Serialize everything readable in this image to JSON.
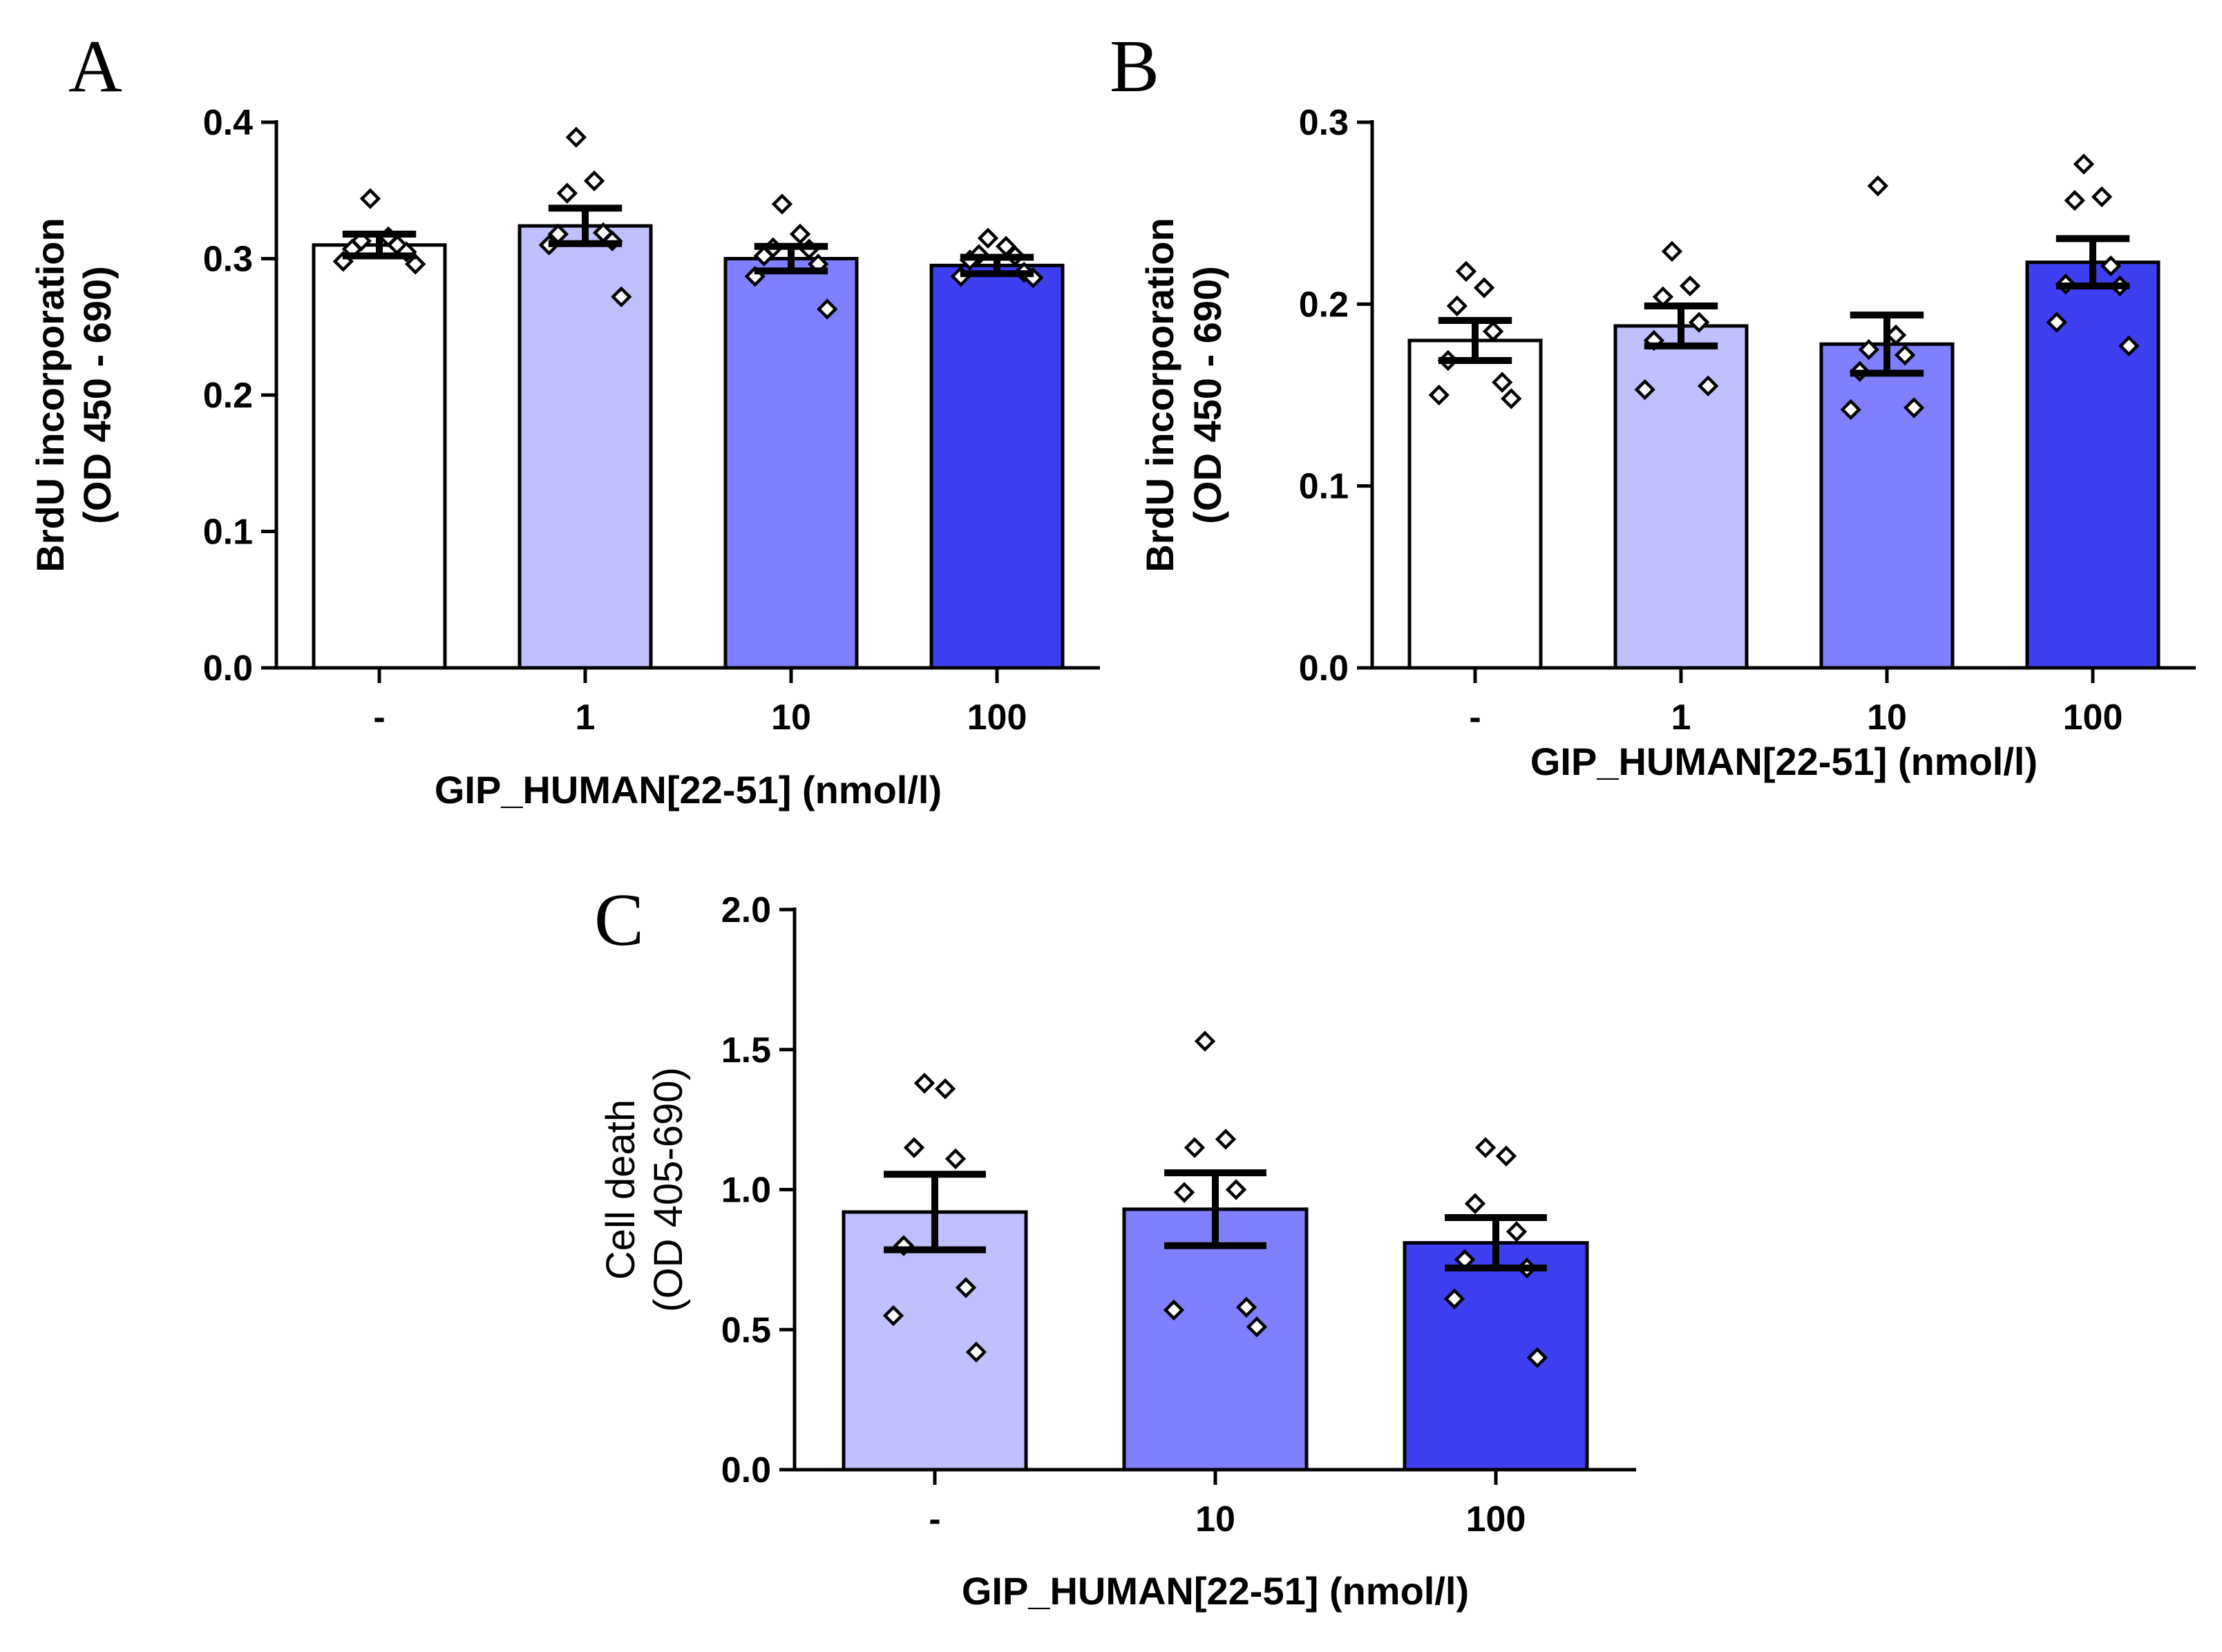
{
  "chart_data": [
    {
      "id": "A",
      "type": "bar",
      "panel_label": "A",
      "xlabel": "GIP_HUMAN[22-51] (nmol/l)",
      "ylabel_lines": [
        "BrdU incorporation",
        "(OD 450 - 690)"
      ],
      "ylim": [
        0,
        0.4
      ],
      "yticks": [
        0.0,
        0.1,
        0.2,
        0.3,
        0.4
      ],
      "ytick_labels": [
        "0.0",
        "0.1",
        "0.2",
        "0.3",
        "0.4"
      ],
      "categories": [
        "-",
        "1",
        "10",
        "100"
      ],
      "values": [
        0.31,
        0.324,
        0.3,
        0.295
      ],
      "errors": [
        0.008,
        0.013,
        0.009,
        0.006
      ],
      "colors": [
        "#ffffff",
        "#c0c0ff",
        "#8080ff",
        "#3f3ff2"
      ],
      "points": [
        [
          0.344,
          0.316,
          0.313,
          0.31,
          0.307,
          0.305,
          0.298,
          0.296
        ],
        [
          0.389,
          0.357,
          0.348,
          0.319,
          0.318,
          0.313,
          0.31,
          0.272
        ],
        [
          0.34,
          0.318,
          0.308,
          0.307,
          0.302,
          0.296,
          0.287,
          0.263
        ],
        [
          0.315,
          0.309,
          0.303,
          0.302,
          0.299,
          0.29,
          0.287,
          0.286
        ]
      ]
    },
    {
      "id": "B",
      "type": "bar",
      "panel_label": "B",
      "xlabel": "GIP_HUMAN[22-51] (nmol/l)",
      "ylabel_lines": [
        "BrdU incorporation",
        "(OD 450 - 690)"
      ],
      "ylim": [
        0,
        0.3
      ],
      "yticks": [
        0.0,
        0.1,
        0.2,
        0.3
      ],
      "ytick_labels": [
        "0.0",
        "0.1",
        "0.2",
        "0.3"
      ],
      "categories": [
        "-",
        "1",
        "10",
        "100"
      ],
      "values": [
        0.18,
        0.188,
        0.178,
        0.223
      ],
      "errors": [
        0.011,
        0.011,
        0.016,
        0.013
      ],
      "colors": [
        "#ffffff",
        "#c0c0ff",
        "#8080ff",
        "#3f3ff2"
      ],
      "points": [
        [
          0.218,
          0.209,
          0.199,
          0.185,
          0.169,
          0.157,
          0.15,
          0.148
        ],
        [
          0.229,
          0.21,
          0.204,
          0.19,
          0.18,
          0.155,
          0.153
        ],
        [
          0.265,
          0.183,
          0.175,
          0.172,
          0.163,
          0.143,
          0.142
        ],
        [
          0.277,
          0.259,
          0.257,
          0.221,
          0.211,
          0.21,
          0.19,
          0.177
        ]
      ]
    },
    {
      "id": "C",
      "type": "bar",
      "panel_label": "C",
      "xlabel": "GIP_HUMAN[22-51] (nmol/l)",
      "ylabel_lines": [
        "Cell death",
        "(OD 405-690)"
      ],
      "ylim": [
        0,
        2.0
      ],
      "yticks": [
        0.0,
        0.5,
        1.0,
        1.5,
        2.0
      ],
      "ytick_labels": [
        "0.0",
        "0.5",
        "1.0",
        "1.5",
        "2.0"
      ],
      "categories": [
        "-",
        "10",
        "100"
      ],
      "values": [
        0.92,
        0.93,
        0.81
      ],
      "errors": [
        0.135,
        0.13,
        0.09
      ],
      "colors": [
        "#c0c0ff",
        "#8080ff",
        "#3f3ff2"
      ],
      "points": [
        [
          1.38,
          1.36,
          1.15,
          1.11,
          0.8,
          0.65,
          0.55,
          0.42
        ],
        [
          1.53,
          1.18,
          1.15,
          1.0,
          0.99,
          0.58,
          0.57,
          0.51
        ],
        [
          1.15,
          1.12,
          0.95,
          0.85,
          0.75,
          0.72,
          0.61,
          0.4
        ]
      ]
    }
  ]
}
